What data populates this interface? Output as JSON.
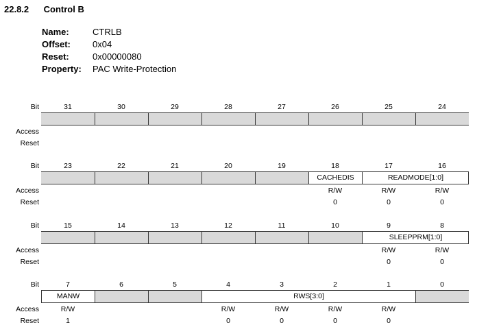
{
  "section": {
    "number": "22.8.2",
    "title": "Control B"
  },
  "properties": [
    {
      "key": "Name:",
      "value": "CTRLB"
    },
    {
      "key": "Offset:",
      "value": "0x04"
    },
    {
      "key": "Reset:",
      "value": "0x00000080"
    },
    {
      "key": "Property:",
      "value": "PAC Write-Protection"
    }
  ],
  "labels": {
    "bit": "Bit",
    "access": "Access",
    "reset": "Reset"
  },
  "colors": {
    "reserved_fill": "#d9d9d9",
    "border": "#333333"
  },
  "registers": [
    {
      "bits": [
        "31",
        "30",
        "29",
        "28",
        "27",
        "26",
        "25",
        "24"
      ],
      "fields": [
        {
          "name": "",
          "span": 1,
          "reserved": true
        },
        {
          "name": "",
          "span": 1,
          "reserved": true
        },
        {
          "name": "",
          "span": 1,
          "reserved": true
        },
        {
          "name": "",
          "span": 1,
          "reserved": true
        },
        {
          "name": "",
          "span": 1,
          "reserved": true
        },
        {
          "name": "",
          "span": 1,
          "reserved": true
        },
        {
          "name": "",
          "span": 1,
          "reserved": true
        },
        {
          "name": "",
          "span": 1,
          "reserved": true
        }
      ],
      "access": [
        "",
        "",
        "",
        "",
        "",
        "",
        "",
        ""
      ],
      "reset": [
        "",
        "",
        "",
        "",
        "",
        "",
        "",
        ""
      ]
    },
    {
      "bits": [
        "23",
        "22",
        "21",
        "20",
        "19",
        "18",
        "17",
        "16"
      ],
      "fields": [
        {
          "name": "",
          "span": 1,
          "reserved": true
        },
        {
          "name": "",
          "span": 1,
          "reserved": true
        },
        {
          "name": "",
          "span": 1,
          "reserved": true
        },
        {
          "name": "",
          "span": 1,
          "reserved": true
        },
        {
          "name": "",
          "span": 1,
          "reserved": true
        },
        {
          "name": "CACHEDIS",
          "span": 1,
          "reserved": false
        },
        {
          "name": "READMODE[1:0]",
          "span": 2,
          "reserved": false
        }
      ],
      "access": [
        "",
        "",
        "",
        "",
        "",
        "R/W",
        "R/W",
        "R/W"
      ],
      "reset": [
        "",
        "",
        "",
        "",
        "",
        "0",
        "0",
        "0"
      ]
    },
    {
      "bits": [
        "15",
        "14",
        "13",
        "12",
        "11",
        "10",
        "9",
        "8"
      ],
      "fields": [
        {
          "name": "",
          "span": 1,
          "reserved": true
        },
        {
          "name": "",
          "span": 1,
          "reserved": true
        },
        {
          "name": "",
          "span": 1,
          "reserved": true
        },
        {
          "name": "",
          "span": 1,
          "reserved": true
        },
        {
          "name": "",
          "span": 1,
          "reserved": true
        },
        {
          "name": "",
          "span": 1,
          "reserved": true
        },
        {
          "name": "SLEEPPRM[1:0]",
          "span": 2,
          "reserved": false
        }
      ],
      "access": [
        "",
        "",
        "",
        "",
        "",
        "",
        "R/W",
        "R/W"
      ],
      "reset": [
        "",
        "",
        "",
        "",
        "",
        "",
        "0",
        "0"
      ]
    },
    {
      "bits": [
        "7",
        "6",
        "5",
        "4",
        "3",
        "2",
        "1",
        "0"
      ],
      "fields": [
        {
          "name": "MANW",
          "span": 1,
          "reserved": false
        },
        {
          "name": "",
          "span": 1,
          "reserved": true
        },
        {
          "name": "",
          "span": 1,
          "reserved": true
        },
        {
          "name": "RWS[3:0]",
          "span": 4,
          "reserved": false
        },
        {
          "name": "",
          "span": 1,
          "reserved": true
        }
      ],
      "access": [
        "R/W",
        "",
        "",
        "R/W",
        "R/W",
        "R/W",
        "R/W",
        ""
      ],
      "reset": [
        "1",
        "",
        "",
        "0",
        "0",
        "0",
        "0",
        ""
      ]
    }
  ]
}
